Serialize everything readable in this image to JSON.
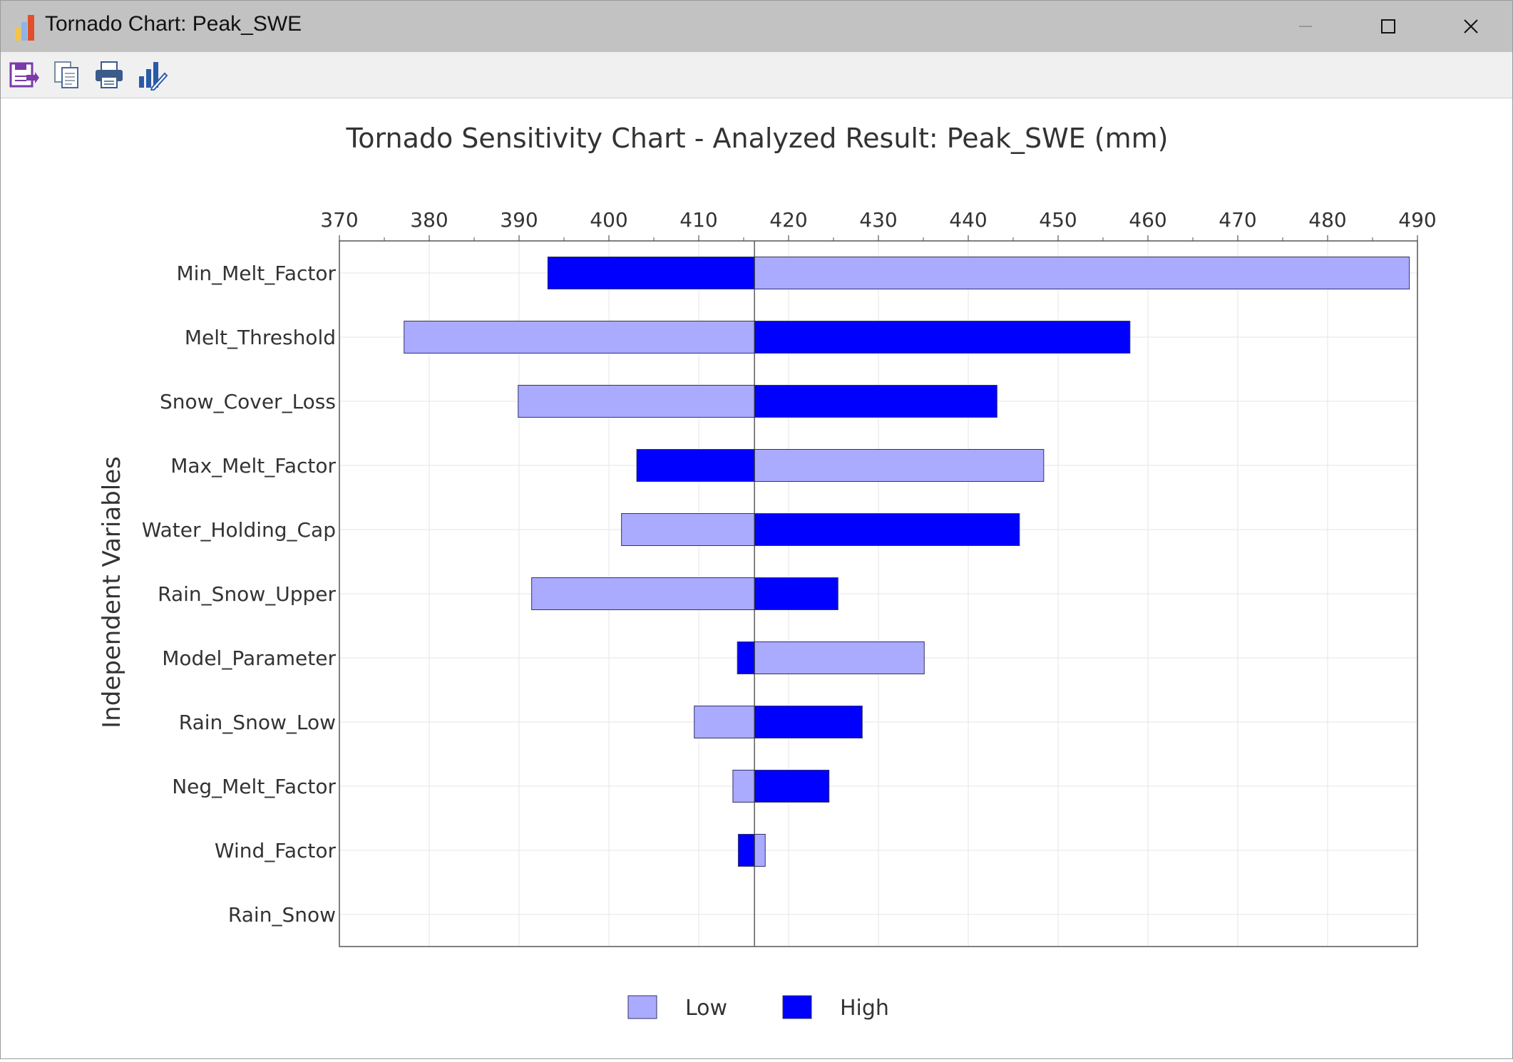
{
  "window": {
    "title": "Tornado Chart: Peak_SWE",
    "icon": "bar-chart-app-icon"
  },
  "toolbar": {
    "buttons": [
      {
        "name": "save-export-button",
        "icon": "save-export-icon"
      },
      {
        "name": "copy-button",
        "icon": "copy-icon"
      },
      {
        "name": "print-button",
        "icon": "printer-icon"
      },
      {
        "name": "chart-settings-button",
        "icon": "chart-edit-icon"
      }
    ]
  },
  "chart_data": {
    "type": "bar",
    "subtype": "tornado",
    "title": "Tornado Sensitivity Chart - Analyzed Result: Peak_SWE (mm)",
    "xlabel": "",
    "ylabel": "Independent Variables",
    "xlim": [
      370,
      490
    ],
    "xticks": [
      370,
      380,
      390,
      400,
      410,
      420,
      430,
      440,
      450,
      460,
      470,
      480,
      490
    ],
    "baseline": 416.2,
    "categories": [
      "Min_Melt_Factor",
      "Melt_Threshold",
      "Snow_Cover_Loss",
      "Max_Melt_Factor",
      "Water_Holding_Cap",
      "Rain_Snow_Upper",
      "Model_Parameter",
      "Rain_Snow_Low",
      "Neg_Melt_Factor",
      "Wind_Factor",
      "Rain_Snow"
    ],
    "series": [
      {
        "name": "Low",
        "color": "#aaaaff",
        "values": [
          489.1,
          377.2,
          389.9,
          448.4,
          401.4,
          391.4,
          435.1,
          409.5,
          413.8,
          417.4,
          416.2
        ]
      },
      {
        "name": "High",
        "color": "#0000ff",
        "values": [
          393.2,
          458.0,
          443.2,
          403.1,
          445.7,
          425.5,
          414.3,
          428.2,
          424.5,
          414.4,
          416.2
        ]
      }
    ],
    "grid": true,
    "legend_position": "bottom-center",
    "colors": {
      "gridline": "#e6e6e6",
      "axis": "#333333",
      "bar_border": "#333366"
    }
  }
}
